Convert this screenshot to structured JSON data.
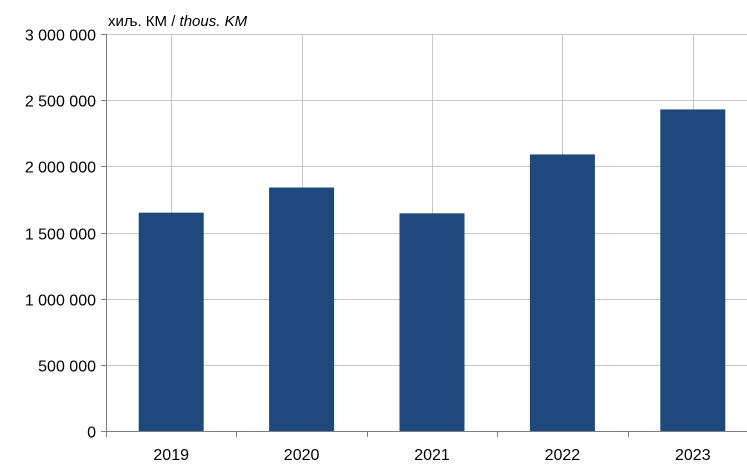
{
  "chart_data": {
    "type": "bar",
    "unit_label_local": "хиљ. КМ / ",
    "unit_label_english": "thous. KM",
    "categories": [
      "2019",
      "2020",
      "2021",
      "2022",
      "2023"
    ],
    "values": [
      1650000,
      1840000,
      1645000,
      2090000,
      2430000
    ],
    "ylim": [
      0,
      3000000
    ],
    "yticks": [
      0,
      500000,
      1000000,
      1500000,
      2000000,
      2500000,
      3000000
    ],
    "ytick_labels": [
      "0",
      "500 000",
      "1 000 000",
      "1 500 000",
      "2 000 000",
      "2 500 000",
      "3 000 000"
    ],
    "grid": true,
    "bar_color": "#1f497d",
    "grid_color": "#c8c8c8",
    "axis_color": "#7f7f7f"
  }
}
